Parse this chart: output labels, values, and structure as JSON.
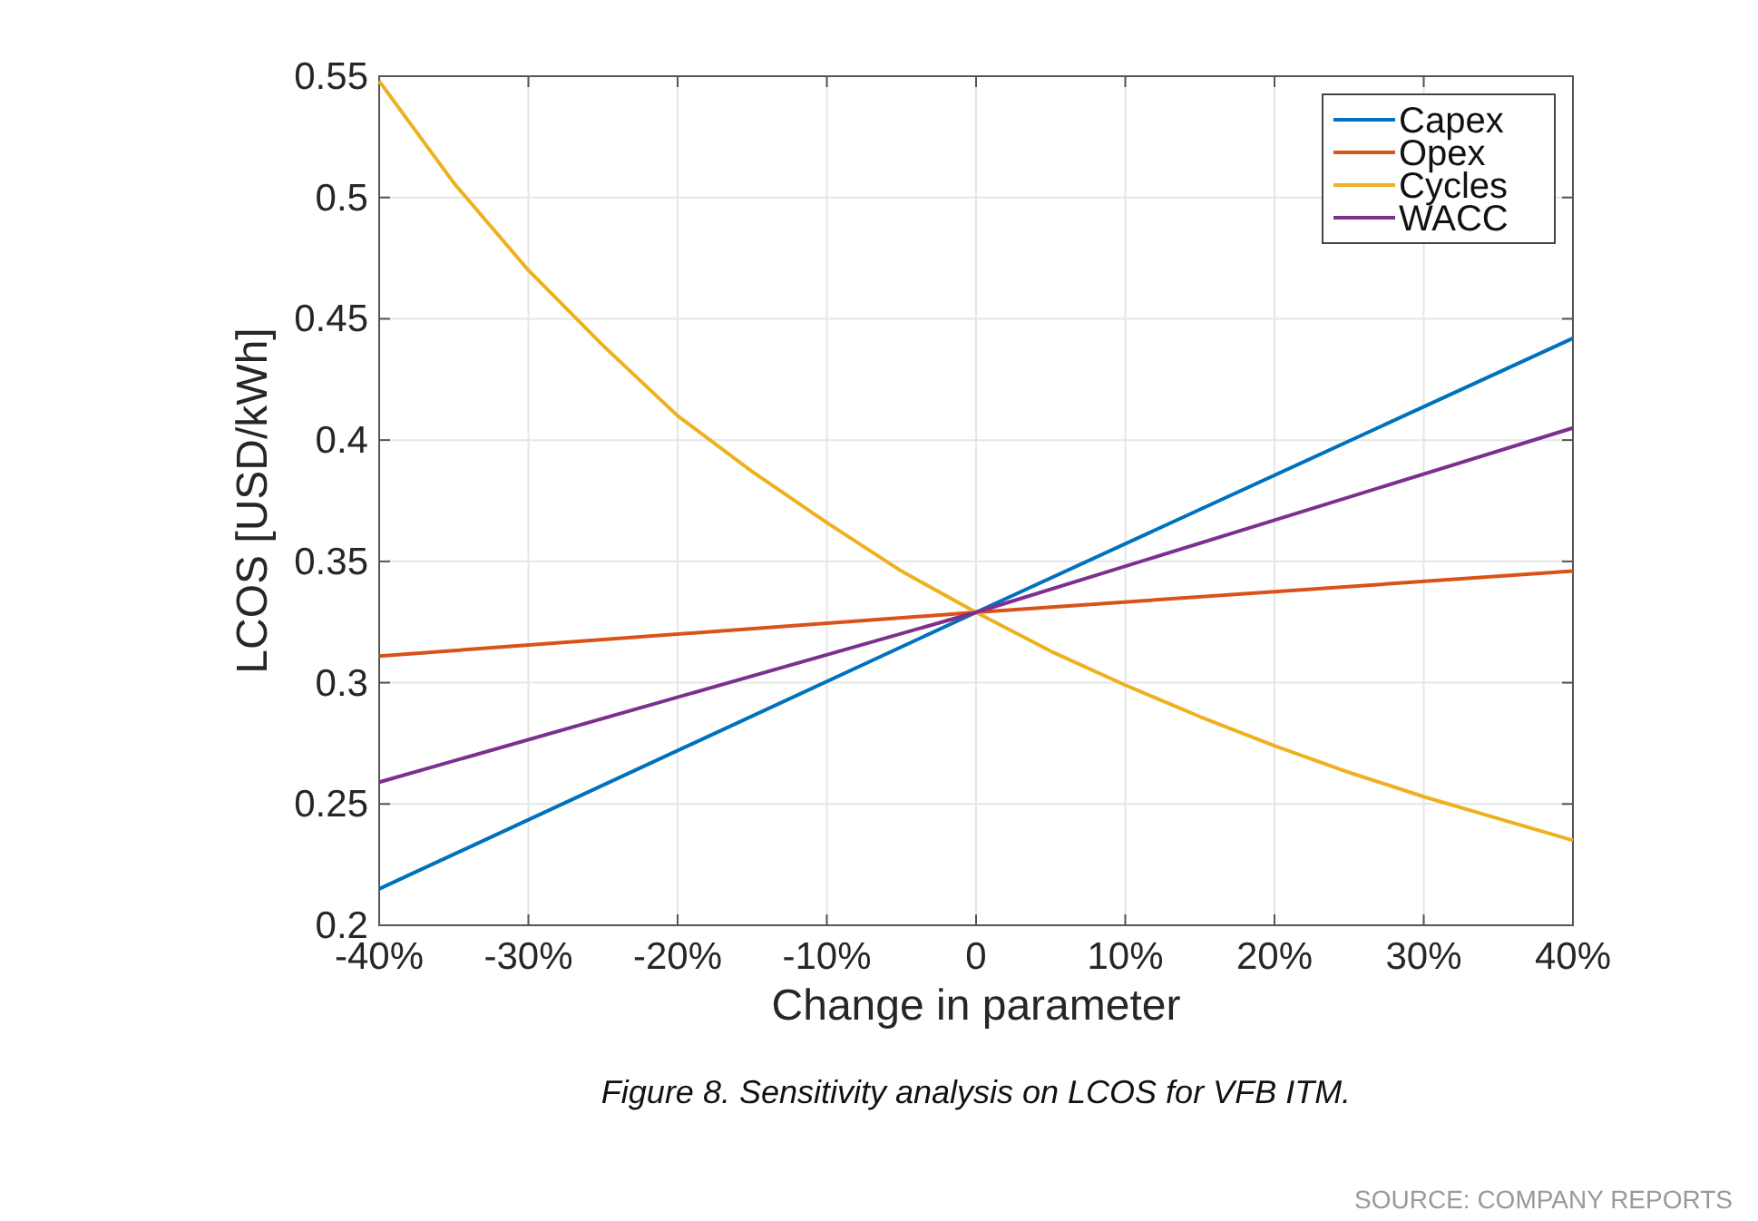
{
  "chart_data": {
    "type": "line",
    "xlabel": "Change in parameter",
    "ylabel": "LCOS [USD/kWh]",
    "x": [
      -40,
      -35,
      -30,
      -25,
      -20,
      -15,
      -10,
      -5,
      0,
      5,
      10,
      15,
      20,
      25,
      30,
      35,
      40
    ],
    "series": [
      {
        "name": "Capex",
        "color": "#0072bd",
        "x": [
          -40,
          0,
          40
        ],
        "values": [
          0.215,
          0.329,
          0.442
        ]
      },
      {
        "name": "Opex",
        "color": "#d95319",
        "x": [
          -40,
          0,
          40
        ],
        "values": [
          0.311,
          0.329,
          0.346
        ]
      },
      {
        "name": "Cycles",
        "color": "#edb120",
        "values": [
          0.548,
          0.506,
          0.47,
          0.439,
          0.41,
          0.387,
          0.366,
          0.346,
          0.329,
          0.313,
          0.299,
          0.286,
          0.274,
          0.263,
          0.253,
          0.244,
          0.235
        ]
      },
      {
        "name": "WACC",
        "color": "#7e2f8e",
        "x": [
          -40,
          0,
          40
        ],
        "values": [
          0.259,
          0.329,
          0.405
        ]
      }
    ],
    "xlim": [
      -40,
      40
    ],
    "xticks": [
      {
        "value": -40,
        "label": "-40%"
      },
      {
        "value": -30,
        "label": "-30%"
      },
      {
        "value": -20,
        "label": "-20%"
      },
      {
        "value": -10,
        "label": "-10%"
      },
      0,
      {
        "value": 10,
        "label": "10%"
      },
      {
        "value": 20,
        "label": "20%"
      },
      {
        "value": 30,
        "label": "30%"
      },
      {
        "value": 40,
        "label": "40%"
      }
    ],
    "ylim": [
      0.2,
      0.55
    ],
    "yticks": [
      0.2,
      0.25,
      0.3,
      0.35,
      0.4,
      0.45,
      0.5,
      0.55
    ],
    "grid": true,
    "legend": "top right",
    "marker": "none",
    "line_style": "solid",
    "annotations": [
      "Figure 8. Sensitivity analysis on LCOS for VFB ITM.",
      "SOURCE: COMPANY REPORTS"
    ]
  }
}
